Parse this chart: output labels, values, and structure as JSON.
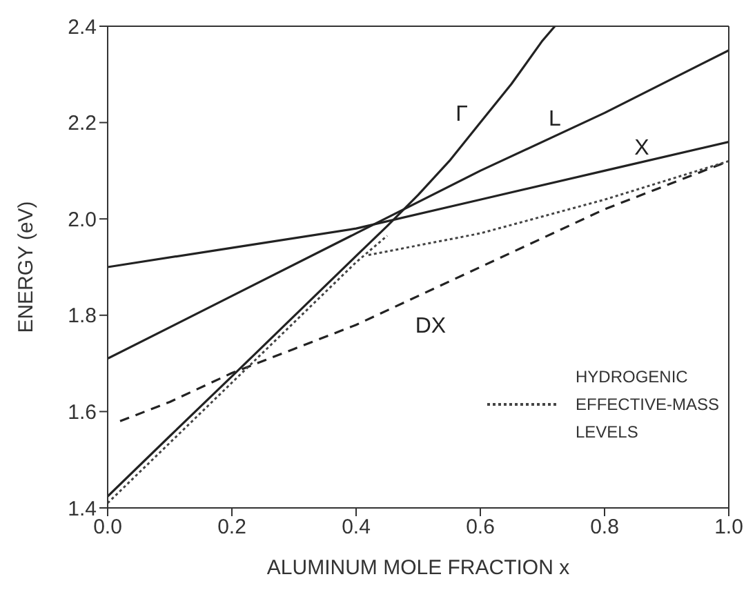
{
  "chart_data": {
    "type": "line",
    "xlabel": "ALUMINUM MOLE FRACTION  x",
    "ylabel": "ENERGY (eV)",
    "xlim": [
      0,
      1
    ],
    "xticks": [
      {
        "value": 0,
        "label": "0.0"
      },
      0.2,
      0.4,
      0.6,
      0.8,
      {
        "value": 1,
        "label": "1.0"
      }
    ],
    "ylim": [
      1.4,
      2.4
    ],
    "yticks": [
      1.4,
      1.6,
      1.8,
      {
        "value": 2,
        "label": "2.0"
      },
      2.2,
      2.4
    ],
    "grid": false,
    "legend": "bottom right",
    "marker": "none",
    "series": [
      {
        "color": "#222222",
        "line_style": "solid",
        "x": [
          0,
          0.1,
          0.2,
          0.3,
          0.4,
          0.45,
          0.5,
          0.55,
          0.6,
          0.65,
          0.7,
          0.72
        ],
        "values": [
          1.424,
          1.549,
          1.673,
          1.798,
          1.923,
          1.985,
          2.05,
          2.12,
          2.2,
          2.28,
          2.37,
          2.4
        ]
      },
      {
        "color": "#222222",
        "line_style": "solid",
        "x": [
          0,
          0.2,
          0.4,
          0.6,
          0.8,
          1
        ],
        "values": [
          1.71,
          1.84,
          1.97,
          2.1,
          2.22,
          2.35
        ]
      },
      {
        "color": "#222222",
        "line_style": "solid",
        "x": [
          0,
          0.2,
          0.4,
          0.6,
          0.8,
          1
        ],
        "values": [
          1.9,
          1.94,
          1.98,
          2.04,
          2.1,
          2.16
        ]
      },
      {
        "color": "#222222",
        "line_style": "dashed",
        "x": [
          0.02,
          0.1,
          0.2,
          0.3,
          0.4,
          0.5,
          0.6,
          0.8,
          1
        ],
        "values": [
          1.58,
          1.62,
          1.68,
          1.73,
          1.78,
          1.84,
          1.9,
          2.02,
          2.12
        ]
      },
      {
        "name": "HYDROGENIC EFFECTIVE-MASS LEVELS",
        "color": "#444444",
        "line_style": "dotted",
        "x": [
          0,
          0.2,
          0.4,
          0.45
        ],
        "values": [
          1.41,
          1.66,
          1.91,
          1.965
        ]
      },
      {
        "color": "#444444",
        "line_style": "dotted",
        "x": [
          0.42,
          0.6,
          0.8,
          1
        ],
        "values": [
          1.925,
          1.97,
          2.04,
          2.12
        ]
      }
    ],
    "annotations": [
      "Γ",
      "L",
      "X",
      "DX"
    ]
  }
}
